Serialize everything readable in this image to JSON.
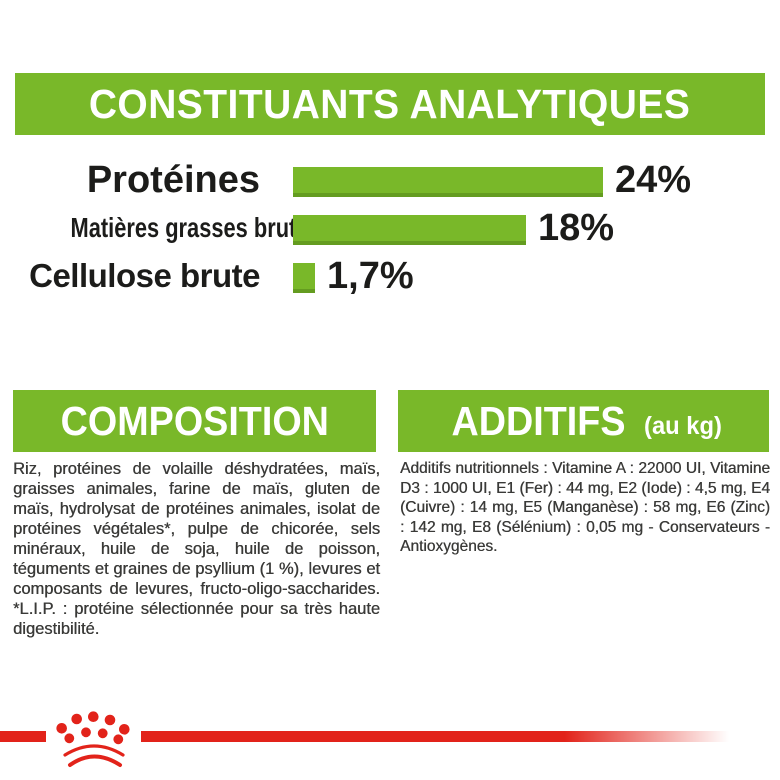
{
  "colors": {
    "green": "#79b829",
    "green_dark": "#649c20",
    "red": "#e2231a",
    "text_black": "#1c1c1a",
    "body_text": "#3a3a38"
  },
  "header": {
    "title": "CONSTITUANTS ANALYTIQUES"
  },
  "chart_data": {
    "type": "bar",
    "orientation": "horizontal",
    "title": "CONSTITUANTS ANALYTIQUES",
    "categories": [
      "Protéines",
      "Matières grasses brutes",
      "Cellulose brute"
    ],
    "values": [
      24,
      18,
      1.7
    ],
    "value_labels": [
      "24%",
      "18%",
      "1,7%"
    ],
    "unit": "%",
    "axis_range": [
      0,
      24
    ],
    "bar_color": "#79b829",
    "grid": false,
    "legend": false
  },
  "composition": {
    "title": "COMPOSITION",
    "body": "Riz, protéines de volaille déshydratées, maïs, graisses animales, farine de maïs, gluten de maïs, hydrolysat de protéines animales, isolat de protéines végétales*, pulpe de chicorée, sels minéraux, huile de soja, huile de poisson, téguments et graines de psyllium (1 %), levures et composants de levures, fructo-oligo-saccharides. *L.I.P. : protéine sélectionnée pour sa très haute digestibilité."
  },
  "additifs": {
    "title": "ADDITIFS",
    "subtitle": "(au kg)",
    "body": "Additifs nutritionnels : Vitamine A : 22000 UI, Vitamine D3 : 1000 UI, E1 (Fer) : 44 mg, E2 (Iode) : 4,5 mg, E4 (Cuivre) : 14 mg, E5 (Manganèse) : 58 mg, E6 (Zinc) : 142 mg, E8 (Sélénium) : 0,05 mg - Conservateurs - Antioxygènes."
  },
  "footer": {
    "logo_icon": "royal-canin-crown-paw-logo"
  }
}
